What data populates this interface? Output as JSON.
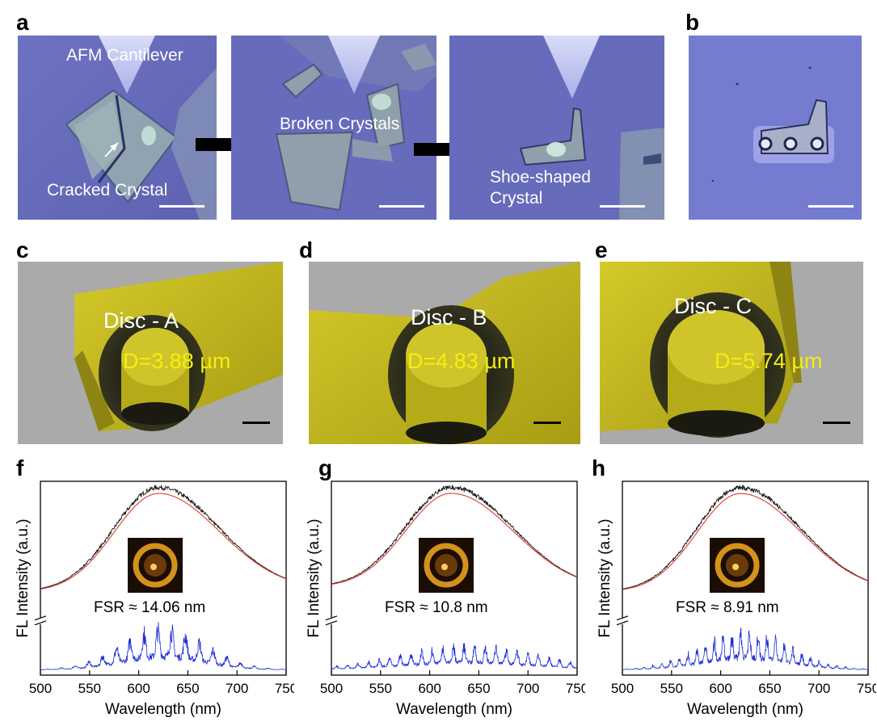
{
  "panels": {
    "a": {
      "letter": "a",
      "labels": [
        "AFM Cantilever",
        "Cracked Crystal",
        "Broken Crystals",
        "Shoe-shaped",
        "Crystal"
      ]
    },
    "b": {
      "letter": "b"
    },
    "c": {
      "letter": "c",
      "disc": "Disc - A",
      "diameter": "D=3.88 µm"
    },
    "d": {
      "letter": "d",
      "disc": "Disc - B",
      "diameter": "D=4.83 µm"
    },
    "e": {
      "letter": "e",
      "disc": "Disc - C",
      "diameter": "D=5.74 µm"
    },
    "f": {
      "letter": "f"
    },
    "g": {
      "letter": "g"
    },
    "h": {
      "letter": "h"
    }
  },
  "colors": {
    "optical_bg": "#6a6fbf",
    "sem_gold": "#c8be1e",
    "sem_gray": "#a7a8a8",
    "fit_line": "#e03a2e",
    "raw_line": "#111111",
    "pl_line": "#1f2fd8",
    "diameter_text": "#f4ee10"
  },
  "chart_data": [
    {
      "type": "line",
      "panel": "f",
      "xlabel": "Wavelength (nm)",
      "ylabel": "FL Intensity (a.u.)",
      "xlim": [
        500,
        750
      ],
      "x_ticks": [
        "500",
        "550",
        "600",
        "650",
        "700",
        "750"
      ],
      "annotation": "FSR ≈ 14.06 nm",
      "envelope": {
        "center": 620,
        "sigma_left": 45,
        "sigma_right": 62,
        "start_level": 0.12,
        "end_level": 0.14
      },
      "modulated": {
        "center": 625,
        "sigma": 42,
        "amplitude": 1.0,
        "fsr_nm": 14.06
      }
    },
    {
      "type": "line",
      "panel": "g",
      "xlabel": "Wavelength (nm)",
      "ylabel": "FL Intensity (a.u.)",
      "xlim": [
        500,
        750
      ],
      "x_ticks": [
        "500",
        "550",
        "600",
        "650",
        "700",
        "750"
      ],
      "annotation": "FSR ≈ 10.8 nm",
      "envelope": {
        "center": 622,
        "sigma_left": 46,
        "sigma_right": 63,
        "start_level": 0.16,
        "end_level": 0.14
      },
      "modulated": {
        "center": 640,
        "sigma": 70,
        "amplitude": 0.55,
        "fsr_nm": 10.8
      }
    },
    {
      "type": "line",
      "panel": "h",
      "xlabel": "Wavelength (nm)",
      "ylabel": "FL Intensity (a.u.)",
      "xlim": [
        500,
        750
      ],
      "x_ticks": [
        "500",
        "550",
        "600",
        "650",
        "700",
        "750"
      ],
      "annotation": "FSR ≈ 8.91 nm",
      "envelope": {
        "center": 620,
        "sigma_left": 44,
        "sigma_right": 62,
        "start_level": 0.12,
        "end_level": 0.12
      },
      "modulated": {
        "center": 625,
        "sigma": 45,
        "amplitude": 0.9,
        "fsr_nm": 8.91
      }
    }
  ]
}
